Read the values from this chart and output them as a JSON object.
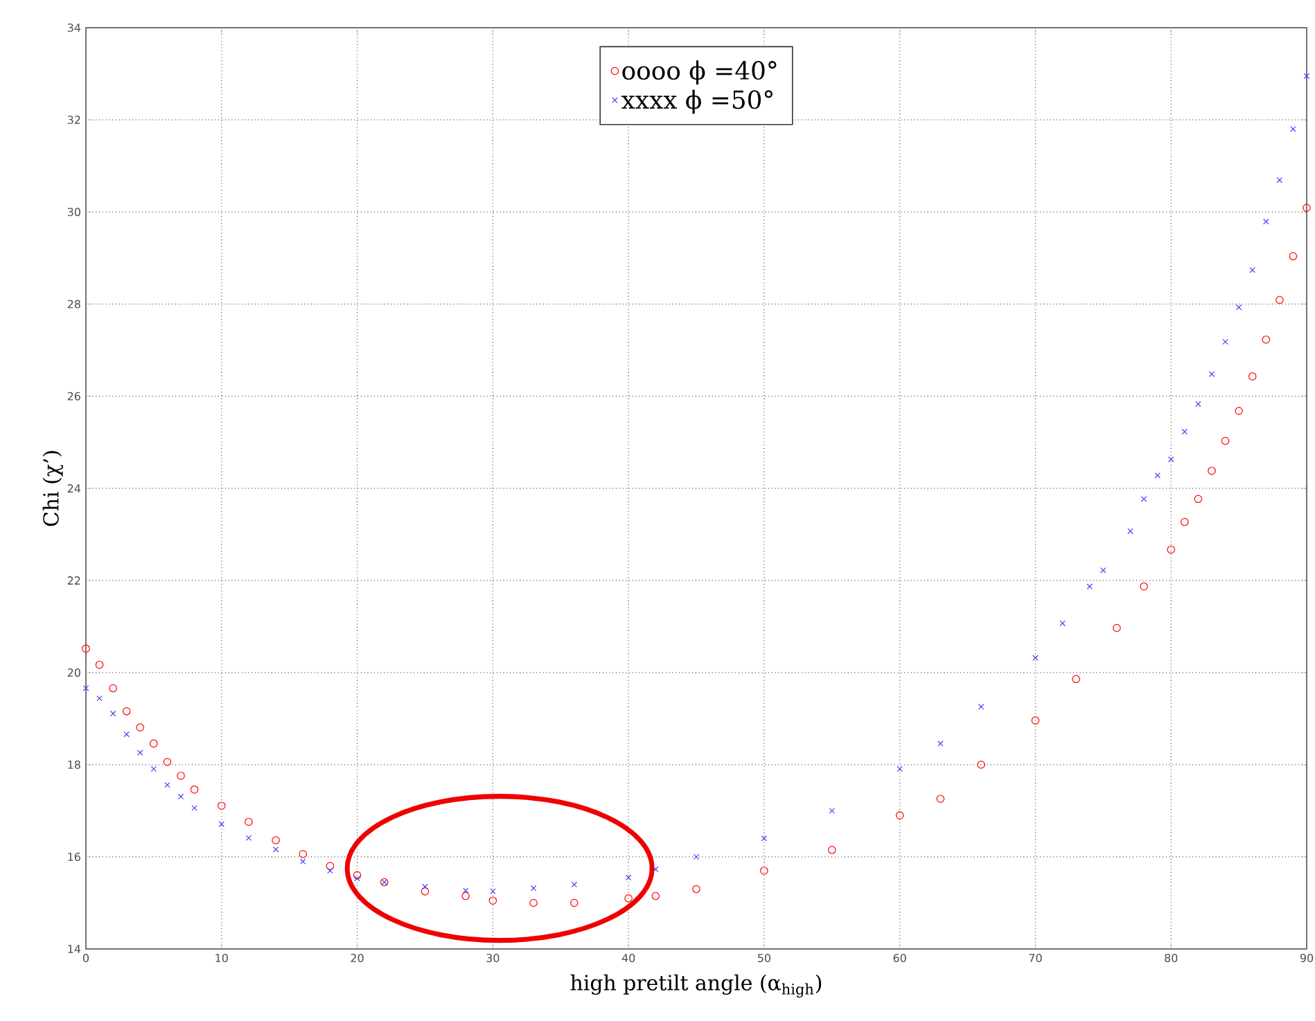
{
  "chart_data": {
    "type": "scatter",
    "xlabel": "high pretilt angle (α$_{high}$)",
    "ylabel": "Chi (χ’)",
    "xlim": [
      0,
      90
    ],
    "ylim": [
      14,
      34
    ],
    "xticks": [
      0,
      10,
      20,
      30,
      40,
      50,
      60,
      70,
      80,
      90
    ],
    "yticks": [
      14,
      16,
      18,
      20,
      22,
      24,
      26,
      28,
      30,
      32,
      34
    ],
    "grid": true,
    "legend": "top",
    "series": [
      {
        "name": "oooo ϕ =40°",
        "color": "#ff0000",
        "marker": "circle",
        "x": [
          0,
          1,
          2,
          3,
          4,
          5,
          6,
          7,
          8,
          10,
          12,
          14,
          16,
          18,
          20,
          22,
          25,
          28,
          30,
          33,
          36,
          40,
          42,
          45,
          50,
          55,
          60,
          63,
          66,
          70,
          73,
          76,
          78,
          80,
          81,
          82,
          83,
          84,
          85,
          86,
          87,
          88,
          89,
          90
        ],
        "values": [
          20.52,
          20.17,
          19.66,
          19.16,
          18.81,
          18.46,
          18.06,
          17.76,
          17.46,
          17.11,
          16.76,
          16.36,
          16.06,
          15.8,
          15.6,
          15.45,
          15.25,
          15.15,
          15.05,
          15.0,
          15.0,
          15.1,
          15.15,
          15.3,
          15.7,
          16.15,
          16.9,
          17.26,
          18.0,
          18.96,
          19.86,
          20.97,
          21.87,
          22.67,
          23.27,
          23.77,
          24.38,
          25.03,
          25.68,
          26.43,
          27.23,
          28.09,
          29.04,
          30.09
        ]
      },
      {
        "name": "xxxx ϕ =50°",
        "color": "#4040ff",
        "marker": "cross",
        "x": [
          0,
          1,
          2,
          3,
          4,
          5,
          6,
          7,
          8,
          10,
          12,
          14,
          16,
          18,
          20,
          22,
          25,
          28,
          30,
          33,
          36,
          40,
          42,
          45,
          50,
          55,
          60,
          63,
          66,
          70,
          72,
          74,
          75,
          77,
          78,
          79,
          80,
          81,
          82,
          83,
          84,
          85,
          86,
          87,
          88,
          89,
          90
        ],
        "values": [
          19.66,
          19.44,
          19.11,
          18.66,
          18.26,
          17.91,
          17.56,
          17.31,
          17.06,
          16.71,
          16.41,
          16.16,
          15.9,
          15.7,
          15.53,
          15.45,
          15.35,
          15.27,
          15.25,
          15.32,
          15.4,
          15.55,
          15.73,
          16.0,
          16.4,
          17.0,
          17.91,
          18.46,
          19.26,
          20.32,
          21.07,
          21.87,
          22.22,
          23.07,
          23.77,
          24.28,
          24.63,
          25.23,
          25.83,
          26.48,
          27.18,
          27.93,
          28.74,
          29.79,
          30.69,
          31.8,
          32.95
        ]
      }
    ]
  }
}
